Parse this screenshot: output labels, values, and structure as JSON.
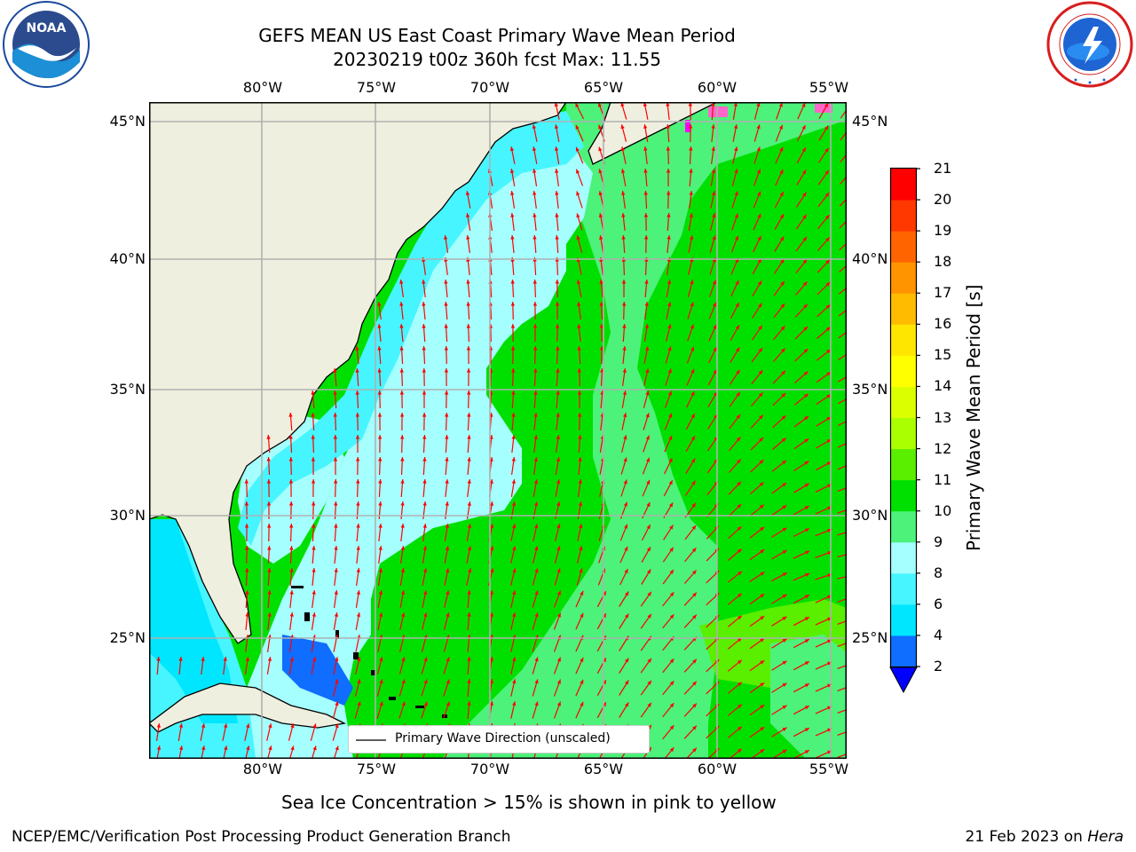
{
  "header": {
    "title_line1": "GEFS MEAN US East Coast Primary Wave Mean Period",
    "title_line2": "20230219 t00z 360h fcst   Max: 11.55"
  },
  "logos": {
    "left": {
      "label": "NOAA",
      "ring_text": "NATIONAL OCEANIC AND ATMOSPHERIC ADMINISTRATION · U.S. DEPARTMENT OF COMMERCE"
    },
    "right": {
      "ring_text": "NATIONAL WEATHER SERVICE"
    }
  },
  "map": {
    "lon_labels": [
      "80°W",
      "75°W",
      "70°W",
      "65°W",
      "60°W",
      "55°W"
    ],
    "lat_labels": [
      "45°N",
      "40°N",
      "35°N",
      "30°N",
      "25°N"
    ],
    "colors": {
      "land": "#efefdf",
      "grid": "#b0b0b0",
      "arrows": "#ff0000",
      "coast": "#000000"
    },
    "legend_label": "Primary Wave Direction (unscaled)"
  },
  "colorbar": {
    "label": "Primary Wave Mean Period [s]",
    "ticks": [
      "2",
      "4",
      "6",
      "8",
      "9",
      "10",
      "11",
      "12",
      "13",
      "14",
      "15",
      "16",
      "17",
      "18",
      "19",
      "20",
      "21"
    ],
    "colors": [
      "#0f6dff",
      "#00e6ff",
      "#46f5ff",
      "#a5ffff",
      "#4cf27a",
      "#00e000",
      "#5aee00",
      "#aaff00",
      "#dcff00",
      "#ffff00",
      "#ffe600",
      "#ffbb00",
      "#ff9300",
      "#ff6400",
      "#ff3800",
      "#ff0000"
    ],
    "under_color": "#0000ff"
  },
  "chart_data": {
    "type": "heatmap",
    "title": "GEFS MEAN US East Coast Primary Wave Mean Period",
    "subtitle": "20230219 t00z 360h fcst   Max: 11.55",
    "colorbar_label": "Primary Wave Mean Period [s]",
    "colorbar_range": [
      2,
      21
    ],
    "max_value": 11.55,
    "vector_field": "Primary Wave Direction (unscaled)",
    "lon_range": [
      -85,
      -54
    ],
    "lat_range": [
      20.5,
      46
    ]
  },
  "notes": {
    "sea_ice": "Sea Ice Concentration > 15% is shown in pink to yellow"
  },
  "footer": {
    "left": "NCEP/EMC/Verification Post Processing Product Generation Branch",
    "right_date": "21 Feb 2023 on ",
    "right_host": "Hera"
  }
}
